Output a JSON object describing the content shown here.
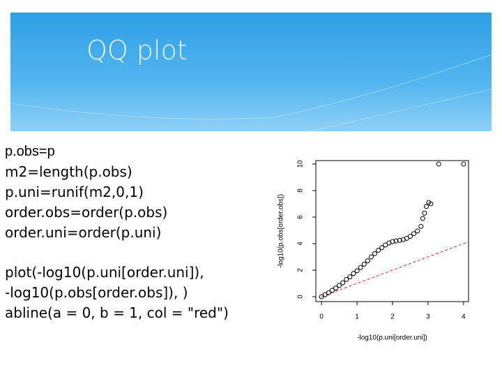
{
  "title": "QQ plot",
  "code": [
    [
      "p.obs=p",
      "m2=length(p.obs)",
      "p.uni=runif(m2,0,1)",
      "order.obs=order(p.obs)",
      "order.uni=order(p.uni)"
    ],
    [
      "plot(-log10(p.uni[order.uni]),",
      "-log10(p.obs[order.obs]), )",
      "abline(a = 0, b = 1, col = \"red\")"
    ]
  ],
  "chart_data": {
    "type": "scatter",
    "x_label": "-log10(p.uni[order.uni])",
    "y_label": "-log10(p.obs[order.obs])",
    "x": [
      0,
      0.1,
      0.2,
      0.3,
      0.4,
      0.5,
      0.6,
      0.7,
      0.8,
      0.9,
      1.0,
      1.1,
      1.2,
      1.3,
      1.4,
      1.5,
      1.6,
      1.7,
      1.8,
      1.9,
      2.0,
      2.1,
      2.2,
      2.3,
      2.4,
      2.5,
      2.6,
      2.7,
      2.8,
      2.85,
      2.9,
      2.95,
      3.02,
      3.08,
      3.3,
      4.0
    ],
    "values": [
      0,
      0.15,
      0.3,
      0.48,
      0.65,
      0.85,
      1.05,
      1.3,
      1.5,
      1.75,
      1.95,
      2.2,
      2.45,
      2.7,
      3.0,
      3.25,
      3.5,
      3.7,
      3.9,
      4.05,
      4.15,
      4.2,
      4.25,
      4.3,
      4.4,
      4.55,
      4.75,
      4.95,
      5.3,
      5.9,
      6.3,
      6.8,
      7.1,
      7.0,
      10.0,
      10.0
    ],
    "color": "#000000",
    "xlim": [
      -0.16,
      4.14
    ],
    "ylim": [
      -0.37,
      10.26
    ],
    "xticks": [
      0,
      1,
      2,
      3,
      4
    ],
    "yticks": [
      0,
      2,
      4,
      6,
      8,
      10
    ],
    "reference_line": {
      "intercept": 0,
      "slope": 1,
      "color": "#d62728"
    }
  }
}
